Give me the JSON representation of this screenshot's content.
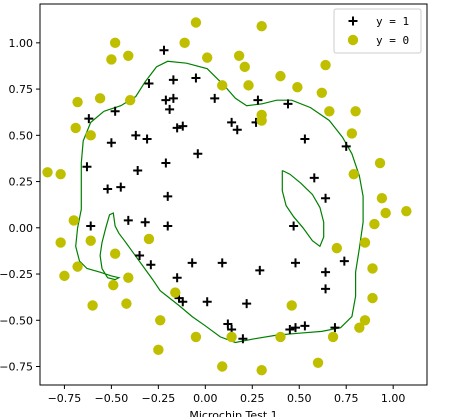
{
  "chart_data": {
    "type": "scatter",
    "title": "",
    "xlabel": "Microchip Test 1",
    "ylabel": "",
    "xlim": [
      -0.88,
      1.18
    ],
    "ylim": [
      -0.85,
      1.21
    ],
    "xticks": [
      -0.75,
      -0.5,
      -0.25,
      0.0,
      0.25,
      0.5,
      0.75,
      1.0
    ],
    "xtick_labels": [
      "−0.75",
      "−0.50",
      "−0.25",
      "0.00",
      "0.25",
      "0.50",
      "0.75",
      "1.00"
    ],
    "yticks": [
      1.0,
      0.75,
      0.5,
      0.25,
      0.0,
      -0.25,
      -0.5,
      -0.75
    ],
    "ytick_labels": [
      "1.00",
      "0.75",
      "0.50",
      "0.25",
      "0.00",
      "−0.25",
      "−0.50",
      "−0.75"
    ],
    "grid": false,
    "legend_position": "top-right",
    "series": [
      {
        "name": "y = 1",
        "marker": "plus",
        "color": "#000000",
        "points": [
          [
            -0.22,
            0.96
          ],
          [
            -0.3,
            0.78
          ],
          [
            -0.17,
            0.8
          ],
          [
            -0.05,
            0.81
          ],
          [
            -0.21,
            0.69
          ],
          [
            -0.17,
            0.7
          ],
          [
            -0.19,
            0.64
          ],
          [
            0.05,
            0.7
          ],
          [
            -0.48,
            0.63
          ],
          [
            -0.62,
            0.59
          ],
          [
            -0.37,
            0.5
          ],
          [
            -0.31,
            0.48
          ],
          [
            -0.15,
            0.54
          ],
          [
            -0.12,
            0.55
          ],
          [
            -0.5,
            0.46
          ],
          [
            0.14,
            0.57
          ],
          [
            0.17,
            0.53
          ],
          [
            0.28,
            0.69
          ],
          [
            0.44,
            0.67
          ],
          [
            0.27,
            0.57
          ],
          [
            0.53,
            0.48
          ],
          [
            0.75,
            0.44
          ],
          [
            -0.04,
            0.4
          ],
          [
            -0.21,
            0.35
          ],
          [
            -0.36,
            0.31
          ],
          [
            -0.63,
            0.33
          ],
          [
            -0.52,
            0.21
          ],
          [
            -0.45,
            0.22
          ],
          [
            -0.2,
            0.17
          ],
          [
            0.58,
            0.27
          ],
          [
            0.64,
            0.16
          ],
          [
            -0.61,
            0.01
          ],
          [
            -0.41,
            0.04
          ],
          [
            -0.32,
            0.03
          ],
          [
            -0.2,
            0.01
          ],
          [
            0.47,
            0.01
          ],
          [
            -0.35,
            -0.15
          ],
          [
            -0.29,
            -0.2
          ],
          [
            -0.15,
            -0.27
          ],
          [
            -0.07,
            -0.19
          ],
          [
            0.09,
            -0.19
          ],
          [
            0.29,
            -0.23
          ],
          [
            0.48,
            -0.19
          ],
          [
            0.64,
            -0.24
          ],
          [
            0.74,
            -0.18
          ],
          [
            -0.14,
            -0.38
          ],
          [
            -0.12,
            -0.4
          ],
          [
            0.01,
            -0.4
          ],
          [
            0.22,
            -0.41
          ],
          [
            0.12,
            -0.52
          ],
          [
            0.14,
            -0.55
          ],
          [
            0.2,
            -0.6
          ],
          [
            0.45,
            -0.55
          ],
          [
            0.48,
            -0.54
          ],
          [
            0.53,
            -0.53
          ],
          [
            0.69,
            -0.54
          ],
          [
            0.64,
            -0.33
          ]
        ]
      },
      {
        "name": "y = 0",
        "marker": "circle",
        "color": "#bfbf00",
        "points": [
          [
            -0.05,
            1.11
          ],
          [
            0.3,
            1.09
          ],
          [
            -0.48,
            1.0
          ],
          [
            -0.5,
            0.91
          ],
          [
            -0.41,
            0.93
          ],
          [
            -0.11,
            1.0
          ],
          [
            0.01,
            0.92
          ],
          [
            0.18,
            0.93
          ],
          [
            0.21,
            0.87
          ],
          [
            -0.68,
            0.68
          ],
          [
            -0.56,
            0.7
          ],
          [
            -0.4,
            0.69
          ],
          [
            0.09,
            0.77
          ],
          [
            0.23,
            0.77
          ],
          [
            0.4,
            0.82
          ],
          [
            0.49,
            0.76
          ],
          [
            0.64,
            0.88
          ],
          [
            0.62,
            0.73
          ],
          [
            0.66,
            0.63
          ],
          [
            0.8,
            0.63
          ],
          [
            0.78,
            0.51
          ],
          [
            -0.69,
            0.54
          ],
          [
            -0.61,
            0.5
          ],
          [
            -0.84,
            0.3
          ],
          [
            -0.77,
            0.29
          ],
          [
            0.79,
            0.29
          ],
          [
            0.93,
            0.35
          ],
          [
            0.94,
            0.16
          ],
          [
            1.07,
            0.09
          ],
          [
            0.96,
            0.08
          ],
          [
            0.9,
            0.02
          ],
          [
            -0.7,
            0.04
          ],
          [
            -0.77,
            -0.08
          ],
          [
            -0.61,
            -0.07
          ],
          [
            -0.3,
            -0.06
          ],
          [
            0.7,
            -0.11
          ],
          [
            0.85,
            -0.08
          ],
          [
            -0.75,
            -0.26
          ],
          [
            -0.68,
            -0.21
          ],
          [
            -0.48,
            -0.14
          ],
          [
            -0.49,
            -0.31
          ],
          [
            -0.41,
            -0.27
          ],
          [
            0.89,
            -0.22
          ],
          [
            0.89,
            -0.38
          ],
          [
            -0.6,
            -0.42
          ],
          [
            -0.42,
            -0.41
          ],
          [
            -0.16,
            -0.35
          ],
          [
            0.46,
            -0.42
          ],
          [
            -0.24,
            -0.5
          ],
          [
            0.85,
            -0.5
          ],
          [
            0.82,
            -0.54
          ],
          [
            -0.05,
            -0.59
          ],
          [
            0.14,
            -0.59
          ],
          [
            0.4,
            -0.59
          ],
          [
            0.68,
            -0.59
          ],
          [
            -0.25,
            -0.66
          ],
          [
            0.09,
            -0.75
          ],
          [
            0.3,
            -0.77
          ],
          [
            0.6,
            -0.73
          ],
          [
            0.3,
            0.61
          ],
          [
            0.3,
            0.58
          ]
        ]
      }
    ],
    "decision_boundary": {
      "color": "#008000",
      "outer": [
        [
          -0.54,
          0.63
        ],
        [
          -0.45,
          0.66
        ],
        [
          -0.37,
          0.71
        ],
        [
          -0.32,
          0.79
        ],
        [
          -0.26,
          0.87
        ],
        [
          -0.2,
          0.9
        ],
        [
          -0.1,
          0.89
        ],
        [
          0.01,
          0.86
        ],
        [
          0.1,
          0.77
        ],
        [
          0.16,
          0.7
        ],
        [
          0.22,
          0.66
        ],
        [
          0.3,
          0.67
        ],
        [
          0.38,
          0.69
        ],
        [
          0.46,
          0.69
        ],
        [
          0.56,
          0.65
        ],
        [
          0.66,
          0.58
        ],
        [
          0.73,
          0.49
        ],
        [
          0.78,
          0.4
        ],
        [
          0.82,
          0.28
        ],
        [
          0.84,
          0.17
        ],
        [
          0.84,
          0.03
        ],
        [
          0.82,
          -0.11
        ],
        [
          0.8,
          -0.24
        ],
        [
          0.8,
          -0.37
        ],
        [
          0.78,
          -0.48
        ],
        [
          0.72,
          -0.54
        ],
        [
          0.62,
          -0.56
        ],
        [
          0.5,
          -0.57
        ],
        [
          0.38,
          -0.58
        ],
        [
          0.26,
          -0.6
        ],
        [
          0.16,
          -0.62
        ],
        [
          0.08,
          -0.59
        ],
        [
          0.0,
          -0.53
        ],
        [
          -0.07,
          -0.48
        ],
        [
          -0.14,
          -0.42
        ],
        [
          -0.19,
          -0.38
        ],
        [
          -0.24,
          -0.34
        ],
        [
          -0.28,
          -0.28
        ],
        [
          -0.33,
          -0.21
        ],
        [
          -0.38,
          -0.14
        ],
        [
          -0.43,
          -0.07
        ],
        [
          -0.46,
          -0.03
        ],
        [
          -0.48,
          0.01
        ],
        [
          -0.49,
          0.08
        ],
        [
          -0.51,
          0.07
        ],
        [
          -0.53,
          0.0
        ],
        [
          -0.55,
          -0.08
        ],
        [
          -0.56,
          -0.15
        ],
        [
          -0.55,
          -0.22
        ],
        [
          -0.52,
          -0.27
        ],
        [
          -0.48,
          -0.28
        ],
        [
          -0.46,
          -0.27
        ],
        [
          -0.5,
          -0.26
        ],
        [
          -0.56,
          -0.24
        ],
        [
          -0.63,
          -0.22
        ],
        [
          -0.67,
          -0.18
        ],
        [
          -0.69,
          -0.1
        ],
        [
          -0.68,
          0.0
        ],
        [
          -0.66,
          0.1
        ],
        [
          -0.66,
          0.22
        ],
        [
          -0.66,
          0.35
        ],
        [
          -0.65,
          0.47
        ],
        [
          -0.61,
          0.57
        ],
        [
          -0.54,
          0.63
        ]
      ],
      "inner": [
        [
          0.41,
          0.31
        ],
        [
          0.45,
          0.29
        ],
        [
          0.51,
          0.24
        ],
        [
          0.57,
          0.18
        ],
        [
          0.61,
          0.11
        ],
        [
          0.63,
          0.03
        ],
        [
          0.63,
          -0.05
        ],
        [
          0.61,
          -0.1
        ],
        [
          0.57,
          -0.07
        ],
        [
          0.52,
          0.0
        ],
        [
          0.47,
          0.06
        ],
        [
          0.43,
          0.12
        ],
        [
          0.41,
          0.2
        ],
        [
          0.41,
          0.31
        ]
      ]
    }
  }
}
